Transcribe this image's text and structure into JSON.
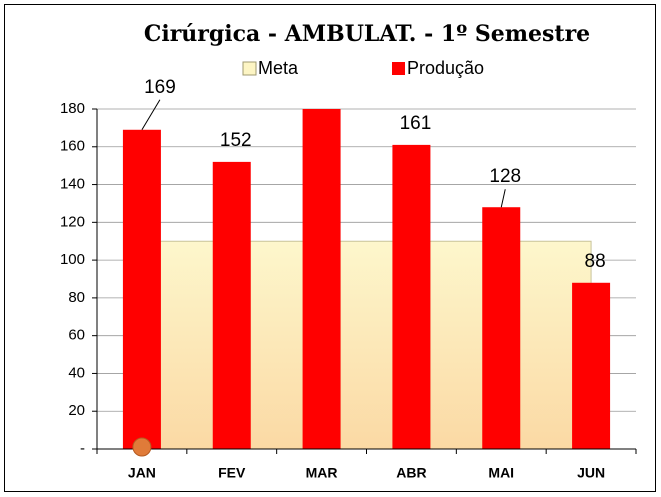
{
  "chart_data": {
    "type": "bar",
    "title": "Cirúrgica - AMBULAT. - 1º Semestre",
    "categories": [
      "JAN",
      "FEV",
      "MAR",
      "ABR",
      "MAI",
      "JUN"
    ],
    "series": [
      {
        "name": "Meta",
        "color": "#fdf5c4",
        "kind": "area",
        "values": [
          110,
          110,
          110,
          110,
          110,
          110
        ]
      },
      {
        "name": "Produção",
        "color": "#ff0000",
        "kind": "bar",
        "values": [
          169,
          152,
          180,
          161,
          128,
          88
        ],
        "value_labels": [
          "169",
          "152",
          null,
          "161",
          "128",
          "88"
        ]
      }
    ],
    "ylim": [
      0,
      180
    ],
    "yticks": [
      {
        "value": 0,
        "label": "-"
      },
      20,
      40,
      60,
      80,
      100,
      120,
      140,
      160,
      180
    ],
    "grid": true,
    "legend": "top"
  }
}
